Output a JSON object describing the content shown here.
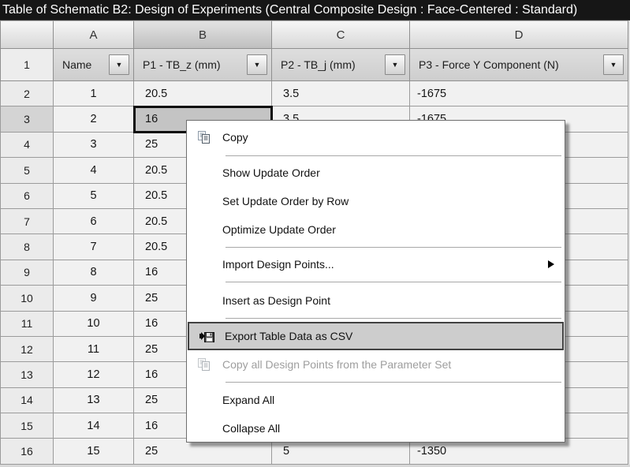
{
  "title_bar": {
    "text": "Table of Schematic B2: Design of Experiments (Central Composite Design : Face-Centered : Standard)"
  },
  "icons": {
    "filter_glyph": "▼"
  },
  "table": {
    "column_letters": [
      "A",
      "B",
      "C",
      "D"
    ],
    "selected_column": "B",
    "param_row_number": "1",
    "param_headers": [
      {
        "id": "name",
        "label": "Name"
      },
      {
        "id": "p1",
        "label": "P1 - TB_z (mm)"
      },
      {
        "id": "p2",
        "label": "P2 - TB_j (mm)"
      },
      {
        "id": "p3",
        "label": "P3 - Force Y Component (N)"
      }
    ],
    "selected_cell": {
      "column": "B",
      "row": "3",
      "value": "16"
    },
    "rows": [
      {
        "row": "2",
        "name": "1",
        "p1": "20.5",
        "p2": "3.5",
        "p3": "-1675"
      },
      {
        "row": "3",
        "name": "2",
        "p1": "16",
        "p2": "3.5",
        "p3": "-1675",
        "selected": true
      },
      {
        "row": "4",
        "name": "3",
        "p1": "25",
        "p2": "",
        "p3": ""
      },
      {
        "row": "5",
        "name": "4",
        "p1": "20.5",
        "p2": "",
        "p3": ""
      },
      {
        "row": "6",
        "name": "5",
        "p1": "20.5",
        "p2": "",
        "p3": ""
      },
      {
        "row": "7",
        "name": "6",
        "p1": "20.5",
        "p2": "",
        "p3": ""
      },
      {
        "row": "8",
        "name": "7",
        "p1": "20.5",
        "p2": "",
        "p3": ""
      },
      {
        "row": "9",
        "name": "8",
        "p1": "16",
        "p2": "",
        "p3": ""
      },
      {
        "row": "10",
        "name": "9",
        "p1": "25",
        "p2": "",
        "p3": ""
      },
      {
        "row": "11",
        "name": "10",
        "p1": "16",
        "p2": "",
        "p3": ""
      },
      {
        "row": "12",
        "name": "11",
        "p1": "25",
        "p2": "",
        "p3": ""
      },
      {
        "row": "13",
        "name": "12",
        "p1": "16",
        "p2": "",
        "p3": ""
      },
      {
        "row": "14",
        "name": "13",
        "p1": "25",
        "p2": "",
        "p3": ""
      },
      {
        "row": "15",
        "name": "14",
        "p1": "16",
        "p2": "",
        "p3": ""
      },
      {
        "row": "16",
        "name": "15",
        "p1": "25",
        "p2": "5",
        "p3": "-1350"
      }
    ]
  },
  "context_menu": {
    "items": [
      {
        "type": "item",
        "label": "Copy",
        "icon": "copy-icon"
      },
      {
        "type": "separator"
      },
      {
        "type": "item",
        "label": "Show Update Order"
      },
      {
        "type": "item",
        "label": "Set Update Order by Row"
      },
      {
        "type": "item",
        "label": "Optimize Update Order"
      },
      {
        "type": "separator"
      },
      {
        "type": "item",
        "label": "Import Design Points...",
        "submenu": true
      },
      {
        "type": "separator"
      },
      {
        "type": "item",
        "label": "Insert as Design Point"
      },
      {
        "type": "separator"
      },
      {
        "type": "item",
        "label": "Export Table Data as CSV",
        "icon": "export-csv-icon",
        "highlighted": true
      },
      {
        "type": "item",
        "label": "Copy all Design Points from the Parameter Set",
        "icon": "copy-icon",
        "disabled": true
      },
      {
        "type": "separator"
      },
      {
        "type": "item",
        "label": "Expand All"
      },
      {
        "type": "item",
        "label": "Collapse All"
      }
    ]
  },
  "colors": {
    "title_bg": "#161616",
    "title_fg": "#ffffff",
    "cell_bg": "#f1f1f1",
    "selected_cell_bg": "#c4c4c4",
    "selected_cell_border": "#0c0c0c",
    "menu_bg": "#ffffff",
    "menu_highlight_bg": "#cdcdcd",
    "disabled_fg": "#9e9e9e",
    "grid_line": "#9b9b9b"
  }
}
